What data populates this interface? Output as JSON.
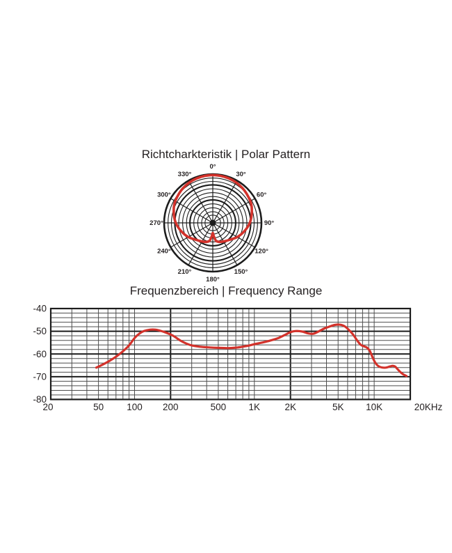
{
  "page": {
    "background": "#ffffff",
    "accent_red": "#d3322b",
    "grid_black": "#1c1c1c"
  },
  "polar_section": {
    "title": "Richtcharkteristik | Polar Pattern"
  },
  "freq_section": {
    "title": "Frequenzbereich | Frequency Range"
  },
  "chart_data": [
    {
      "type": "line",
      "subtype": "polar-pattern",
      "title": "Richtcharkteristik | Polar Pattern",
      "pattern_name": "cardioid",
      "angle_labels": [
        "0°",
        "30°",
        "60°",
        "90°",
        "120°",
        "150°",
        "180°",
        "210°",
        "240°",
        "270°",
        "300°",
        "330°"
      ],
      "angle_label_values_deg": [
        0,
        30,
        60,
        90,
        120,
        150,
        180,
        210,
        240,
        270,
        300,
        330
      ],
      "grid": {
        "ring_radii_fraction": [
          0.16,
          0.23,
          0.31,
          0.39,
          0.47,
          0.54,
          0.62,
          0.7,
          0.78,
          0.85,
          0.92,
          1.0
        ],
        "thick_rings_fraction": [
          0.47,
          0.78,
          1.0
        ],
        "spoke_step_deg": 30,
        "center_dot_fraction": 0.065
      },
      "points_deg_radiusfraction": [
        [
          0,
          0.98
        ],
        [
          20,
          0.97
        ],
        [
          40,
          0.94
        ],
        [
          60,
          0.89
        ],
        [
          75,
          0.83
        ],
        [
          90,
          0.76
        ],
        [
          105,
          0.67
        ],
        [
          120,
          0.58
        ],
        [
          135,
          0.49
        ],
        [
          150,
          0.44
        ],
        [
          162,
          0.41
        ],
        [
          170,
          0.37
        ],
        [
          176,
          0.27
        ],
        [
          180,
          0.21
        ],
        [
          184,
          0.27
        ],
        [
          190,
          0.37
        ],
        [
          198,
          0.41
        ],
        [
          210,
          0.44
        ],
        [
          225,
          0.49
        ],
        [
          240,
          0.58
        ],
        [
          255,
          0.67
        ],
        [
          270,
          0.76
        ],
        [
          285,
          0.83
        ],
        [
          300,
          0.89
        ],
        [
          320,
          0.94
        ],
        [
          340,
          0.97
        ]
      ],
      "line_color": "#d3322b"
    },
    {
      "type": "line",
      "subtype": "frequency-response",
      "title": "Frequenzbereich | Frequency Range",
      "x_scale": "log",
      "x_range_hz": [
        20,
        20000
      ],
      "y_range_db": [
        -80,
        -40
      ],
      "y_major_step_db": 10,
      "y_minor_step_db": 2,
      "y_tick_labels": [
        "-40",
        "-50",
        "-60",
        "-70",
        "-80"
      ],
      "y_tick_values": [
        -40,
        -50,
        -60,
        -70,
        -80
      ],
      "x_ticks": [
        {
          "v": 20,
          "label": "20",
          "dx": -4
        },
        {
          "v": 50,
          "label": "50",
          "dx": 0
        },
        {
          "v": 100,
          "label": "100",
          "dx": 0
        },
        {
          "v": 200,
          "label": "200",
          "dx": 0
        },
        {
          "v": 500,
          "label": "500",
          "dx": 0
        },
        {
          "v": 1000,
          "label": "1K",
          "dx": 0
        },
        {
          "v": 2000,
          "label": "2K",
          "dx": 0
        },
        {
          "v": 5000,
          "label": "5K",
          "dx": 0
        },
        {
          "v": 10000,
          "label": "10K",
          "dx": 0
        },
        {
          "v": 20000,
          "label": "20KHz",
          "dx": 26
        }
      ],
      "x_gridlines_hz": [
        30,
        40,
        50,
        60,
        70,
        80,
        90,
        100,
        200,
        300,
        400,
        500,
        600,
        700,
        800,
        900,
        1000,
        2000,
        3000,
        4000,
        5000,
        6000,
        7000,
        8000,
        9000,
        10000
      ],
      "x_thick_gridlines_hz": [
        200,
        2000
      ],
      "points_hz_db": [
        [
          48,
          -66
        ],
        [
          55,
          -64.5
        ],
        [
          62,
          -63
        ],
        [
          70,
          -61.2
        ],
        [
          80,
          -58.8
        ],
        [
          90,
          -56.2
        ],
        [
          100,
          -53
        ],
        [
          110,
          -51
        ],
        [
          120,
          -49.9
        ],
        [
          135,
          -49.3
        ],
        [
          150,
          -49.3
        ],
        [
          165,
          -49.8
        ],
        [
          185,
          -50.7
        ],
        [
          210,
          -52
        ],
        [
          240,
          -54
        ],
        [
          270,
          -55.4
        ],
        [
          300,
          -56.2
        ],
        [
          350,
          -56.8
        ],
        [
          420,
          -57.1
        ],
        [
          500,
          -57.3
        ],
        [
          600,
          -57.4
        ],
        [
          700,
          -57.2
        ],
        [
          800,
          -56.8
        ],
        [
          900,
          -56.3
        ],
        [
          1000,
          -55.7
        ],
        [
          1200,
          -54.8
        ],
        [
          1400,
          -53.9
        ],
        [
          1600,
          -52.9
        ],
        [
          1800,
          -51.6
        ],
        [
          2000,
          -50.4
        ],
        [
          2200,
          -49.9
        ],
        [
          2500,
          -50.1
        ],
        [
          2800,
          -50.9
        ],
        [
          3100,
          -51.1
        ],
        [
          3400,
          -50.2
        ],
        [
          3800,
          -48.9
        ],
        [
          4200,
          -48
        ],
        [
          4700,
          -47.2
        ],
        [
          5200,
          -47.1
        ],
        [
          5700,
          -47.9
        ],
        [
          6200,
          -49.6
        ],
        [
          6700,
          -51.6
        ],
        [
          7200,
          -54
        ],
        [
          7700,
          -55.9
        ],
        [
          8200,
          -56.6
        ],
        [
          8700,
          -57.2
        ],
        [
          9200,
          -58.7
        ],
        [
          9700,
          -61.5
        ],
        [
          10200,
          -63.8
        ],
        [
          10800,
          -65.3
        ],
        [
          11500,
          -65.9
        ],
        [
          12500,
          -66
        ],
        [
          13500,
          -65.5
        ],
        [
          14300,
          -65.2
        ],
        [
          15000,
          -65.6
        ],
        [
          15800,
          -66.9
        ],
        [
          16800,
          -68.3
        ],
        [
          17800,
          -69.2
        ],
        [
          18600,
          -69.7
        ]
      ],
      "line_color": "#d3322b"
    }
  ]
}
